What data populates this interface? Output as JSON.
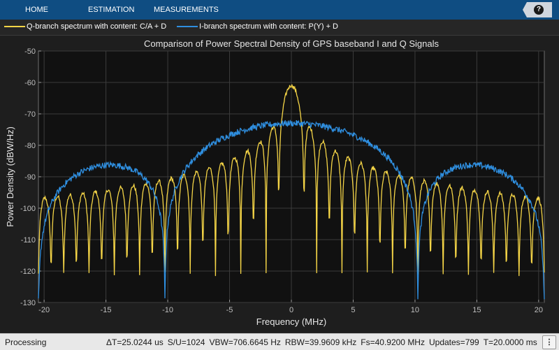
{
  "toolstrip": {
    "tabs": [
      {
        "label": "HOME"
      },
      {
        "label": "ESTIMATION"
      },
      {
        "label": "MEASUREMENTS"
      }
    ],
    "help_glyph": "?"
  },
  "legend": {
    "items": [
      {
        "label": "Q-branch spectrum with content: C/A + D",
        "color": "#f5d547"
      },
      {
        "label": "I-branch spectrum with content: P(Y) + D",
        "color": "#2f8fe0"
      }
    ]
  },
  "chart_data": {
    "type": "line",
    "title": "Comparison of Power Spectral Density of GPS baseband I and Q Signals",
    "xlabel": "Frequency (MHz)",
    "ylabel": "Power Density (dBW/Hz)",
    "xlim": [
      -20.46,
      20.46
    ],
    "ylim": [
      -130,
      -50
    ],
    "xticks": [
      -20,
      -15,
      -10,
      -5,
      0,
      5,
      10,
      15,
      20
    ],
    "yticks": [
      -50,
      -60,
      -70,
      -80,
      -90,
      -100,
      -110,
      -120,
      -130
    ],
    "grid": true,
    "series": [
      {
        "name": "Q-branch spectrum with content: C/A + D",
        "color": "#f5d547",
        "model": "sinc2",
        "chip_rate_mhz": 1.023,
        "peak_dbw_hz": -61
      },
      {
        "name": "I-branch spectrum with content: P(Y) + D",
        "color": "#2f8fe0",
        "model": "sinc2",
        "chip_rate_mhz": 10.23,
        "peak_dbw_hz": -73
      }
    ]
  },
  "status": {
    "left": "Processing",
    "fields": [
      "ΔT=25.0244 us",
      "S/U=1024",
      "VBW=706.6645 Hz",
      "RBW=39.9609 kHz",
      "Fs=40.9200 MHz",
      "Updates=799",
      "T=20.0000 ms"
    ],
    "menu_glyph": "⋮"
  }
}
